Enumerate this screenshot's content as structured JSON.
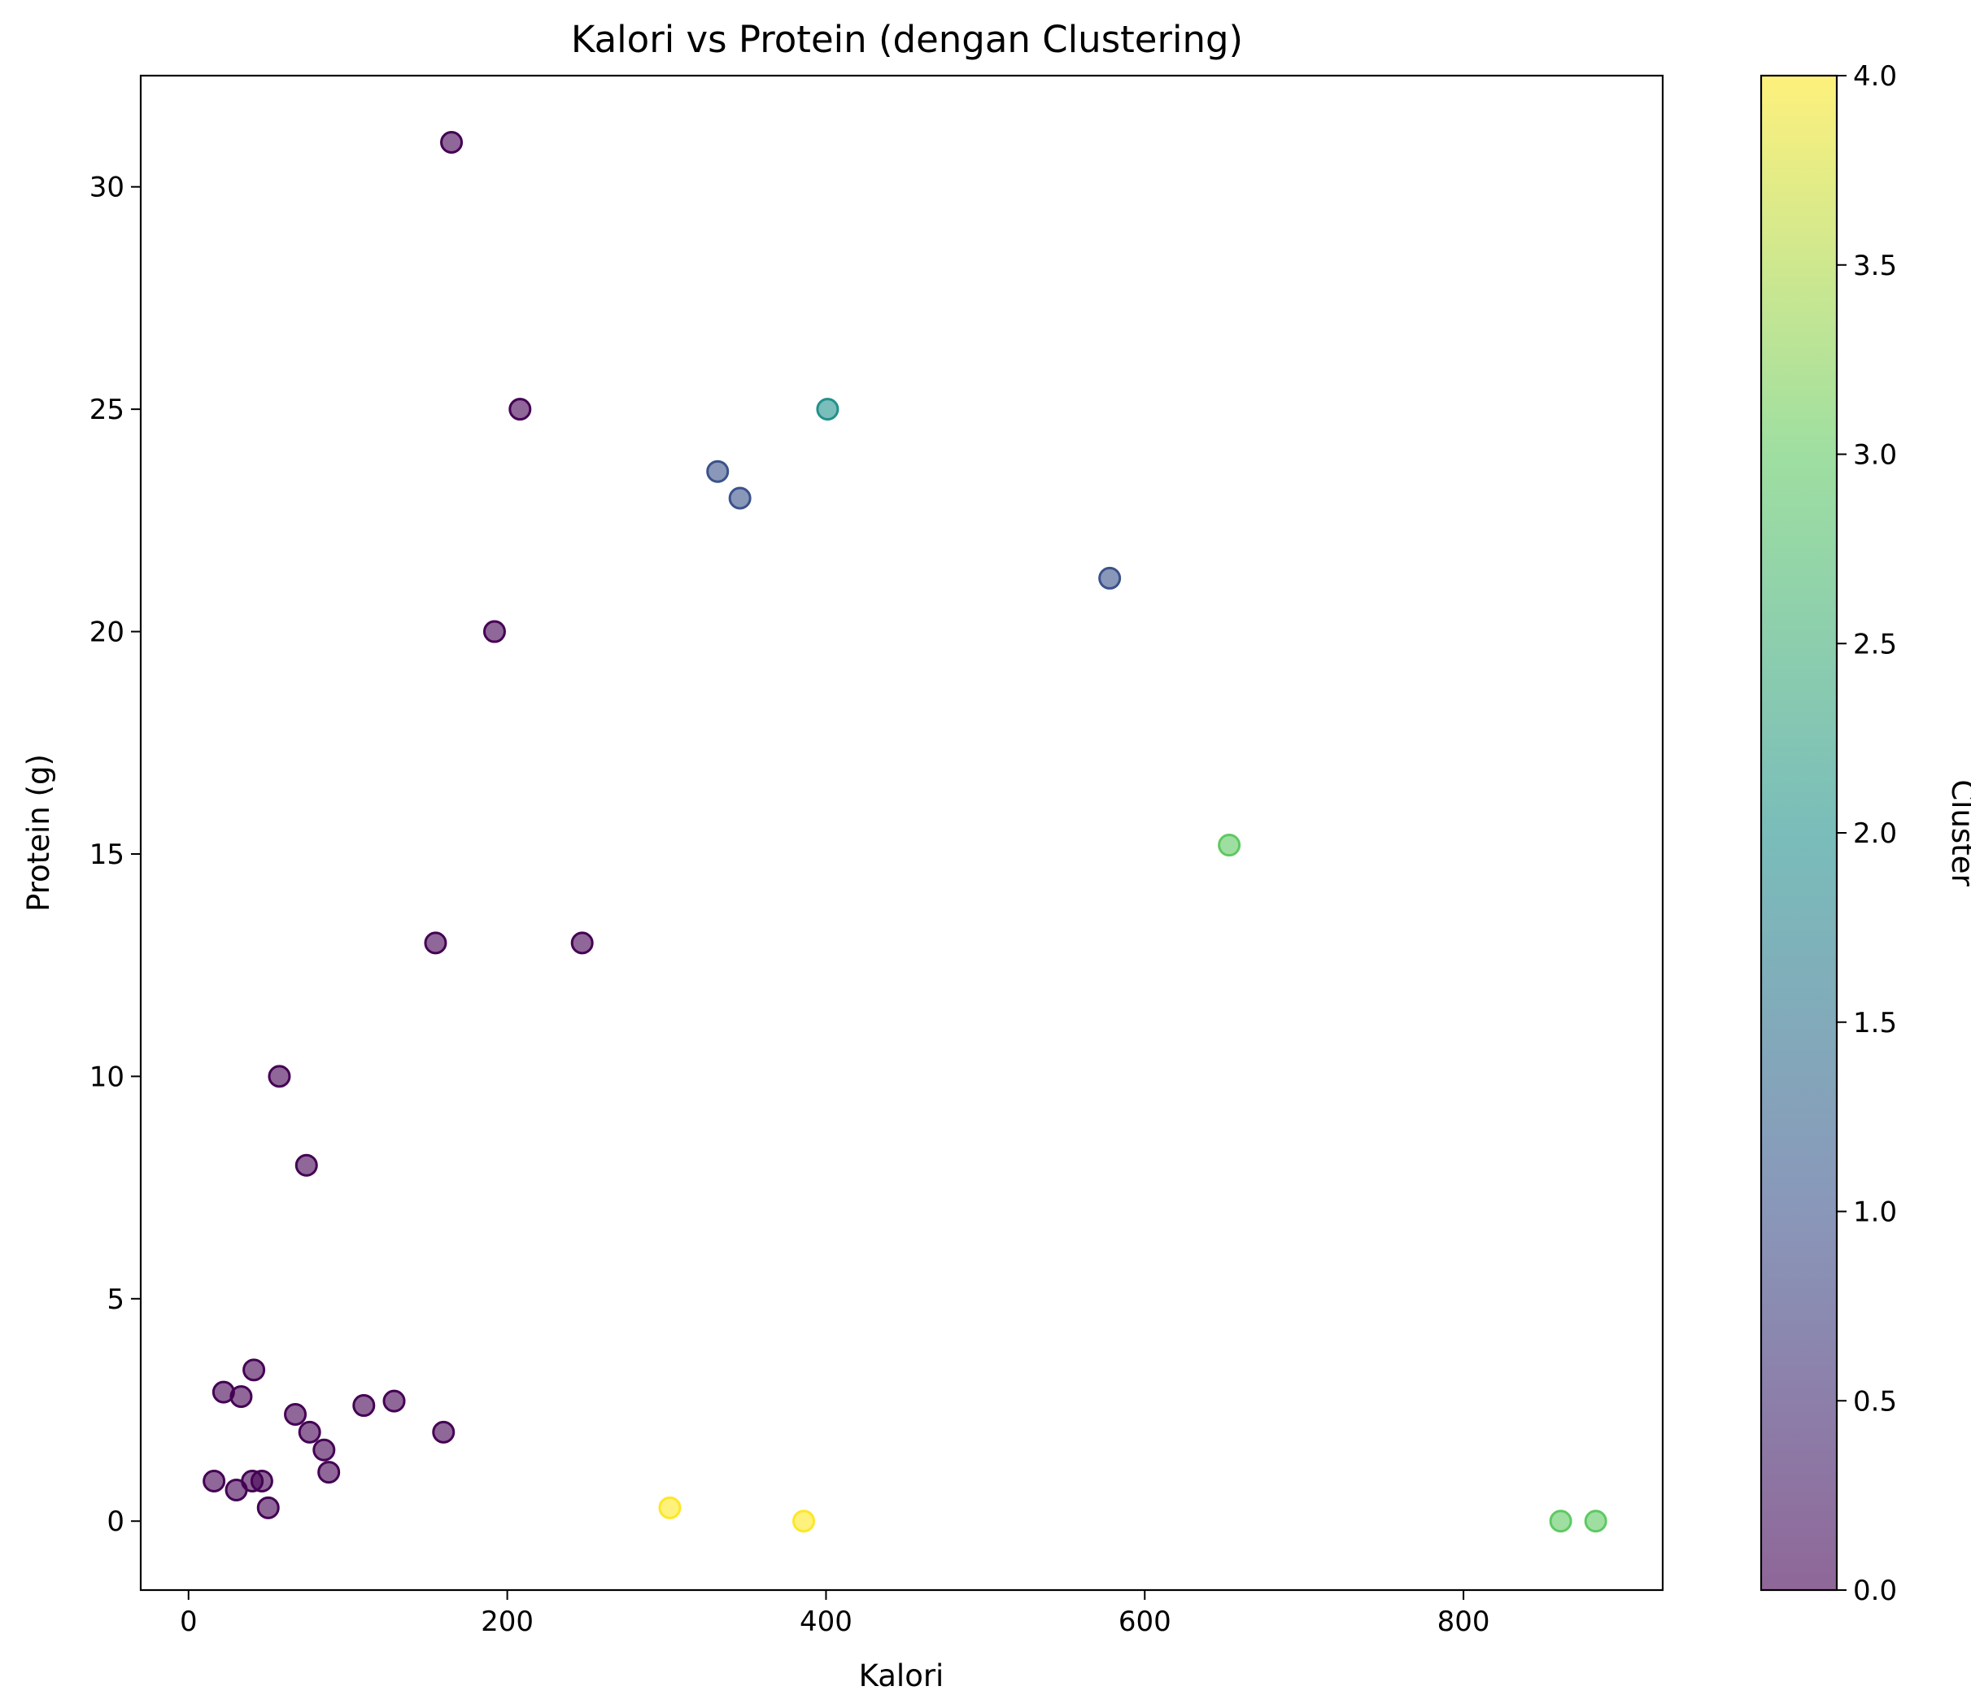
{
  "chart_data": {
    "type": "scatter",
    "title": "Kalori vs Protein (dengan Clustering)",
    "xlabel": "Kalori",
    "ylabel": "Protein (g)",
    "xlim": [
      -30,
      925
    ],
    "ylim": [
      -1.55,
      32.5
    ],
    "xticks": [
      0,
      200,
      400,
      600,
      800
    ],
    "yticks": [
      0,
      5,
      10,
      15,
      20,
      25,
      30
    ],
    "colorbar": {
      "label": "Cluster",
      "range": [
        0,
        4
      ],
      "ticks": [
        "0.0",
        "0.5",
        "1.0",
        "1.5",
        "2.0",
        "2.5",
        "3.0",
        "3.5",
        "4.0"
      ],
      "colormap": "viridis"
    },
    "colormap_stops": [
      "#440154",
      "#3b528b",
      "#21918c",
      "#5ec962",
      "#fde725"
    ],
    "point_alpha": 0.6,
    "points": [
      {
        "x": 165,
        "y": 31.0,
        "cluster": 0
      },
      {
        "x": 208,
        "y": 25.0,
        "cluster": 0
      },
      {
        "x": 192,
        "y": 20.0,
        "cluster": 0
      },
      {
        "x": 155,
        "y": 13.0,
        "cluster": 0
      },
      {
        "x": 247,
        "y": 13.0,
        "cluster": 0
      },
      {
        "x": 57,
        "y": 10.0,
        "cluster": 0
      },
      {
        "x": 74,
        "y": 8.0,
        "cluster": 0
      },
      {
        "x": 41,
        "y": 3.4,
        "cluster": 0
      },
      {
        "x": 22,
        "y": 2.9,
        "cluster": 0
      },
      {
        "x": 33,
        "y": 2.8,
        "cluster": 0
      },
      {
        "x": 67,
        "y": 2.4,
        "cluster": 0
      },
      {
        "x": 110,
        "y": 2.6,
        "cluster": 0
      },
      {
        "x": 129,
        "y": 2.7,
        "cluster": 0
      },
      {
        "x": 160,
        "y": 2.0,
        "cluster": 0
      },
      {
        "x": 76,
        "y": 2.0,
        "cluster": 0
      },
      {
        "x": 85,
        "y": 1.6,
        "cluster": 0
      },
      {
        "x": 88,
        "y": 1.1,
        "cluster": 0
      },
      {
        "x": 16,
        "y": 0.9,
        "cluster": 0
      },
      {
        "x": 40,
        "y": 0.9,
        "cluster": 0
      },
      {
        "x": 46,
        "y": 0.9,
        "cluster": 0
      },
      {
        "x": 30,
        "y": 0.7,
        "cluster": 0
      },
      {
        "x": 50,
        "y": 0.3,
        "cluster": 0
      },
      {
        "x": 332,
        "y": 23.6,
        "cluster": 1
      },
      {
        "x": 346,
        "y": 23.0,
        "cluster": 1
      },
      {
        "x": 578,
        "y": 21.2,
        "cluster": 1
      },
      {
        "x": 401,
        "y": 25.0,
        "cluster": 2
      },
      {
        "x": 653,
        "y": 15.2,
        "cluster": 3
      },
      {
        "x": 861,
        "y": 0.0,
        "cluster": 3
      },
      {
        "x": 883,
        "y": 0.0,
        "cluster": 3
      },
      {
        "x": 302,
        "y": 0.3,
        "cluster": 4
      },
      {
        "x": 386,
        "y": 0.0,
        "cluster": 4
      }
    ]
  }
}
